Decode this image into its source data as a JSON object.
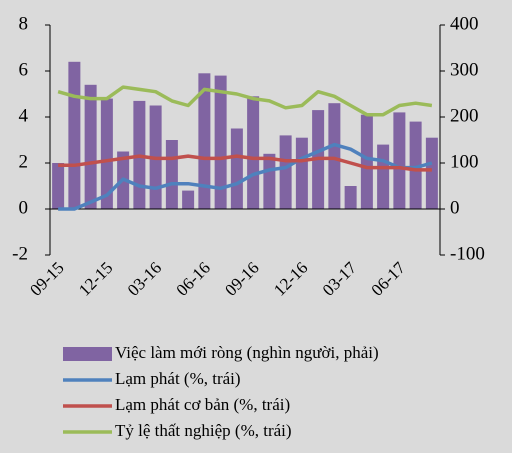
{
  "chart_data": {
    "type": "bar-line",
    "categories": [
      "09-15",
      null,
      null,
      "12-15",
      null,
      null,
      "03-16",
      null,
      null,
      "06-16",
      null,
      null,
      "09-16",
      null,
      null,
      "12-16",
      null,
      null,
      "03-17",
      null,
      null,
      "06-17",
      null,
      null
    ],
    "ylim": [
      -2,
      8
    ],
    "yticks": [
      -2,
      0,
      2,
      4,
      6,
      8
    ],
    "y2lim": [
      -100,
      400
    ],
    "y2ticks": [
      -100,
      0,
      100,
      200,
      300,
      400
    ],
    "series": [
      {
        "name": "Việc làm mới ròng (nghìn người, phải)",
        "type": "bar",
        "axis": "y2",
        "color": "#8064a2",
        "values": [
          100,
          320,
          270,
          240,
          125,
          235,
          225,
          150,
          40,
          295,
          290,
          175,
          245,
          120,
          160,
          155,
          215,
          230,
          50,
          205,
          140,
          210,
          190,
          155
        ]
      },
      {
        "name": "Lạm phát (%, trái)",
        "type": "line",
        "color": "#4f81bd",
        "values": [
          0.0,
          0.0,
          0.3,
          0.6,
          1.3,
          1.0,
          0.9,
          1.1,
          1.1,
          1.0,
          0.9,
          1.1,
          1.5,
          1.7,
          1.8,
          2.2,
          2.5,
          2.8,
          2.6,
          2.2,
          2.1,
          1.8,
          1.8,
          2.0
        ]
      },
      {
        "name": "Lạm phát cơ bản (%, trái)",
        "type": "line",
        "color": "#c0504d",
        "values": [
          1.9,
          1.9,
          2.0,
          2.1,
          2.2,
          2.3,
          2.2,
          2.2,
          2.3,
          2.2,
          2.2,
          2.3,
          2.2,
          2.2,
          2.1,
          2.1,
          2.2,
          2.2,
          2.0,
          1.8,
          1.8,
          1.8,
          1.7,
          1.7
        ]
      },
      {
        "name": "Tỷ lệ thất nghiệp (%, trái)",
        "type": "line",
        "color": "#9bbb59",
        "values": [
          5.1,
          4.9,
          4.8,
          4.8,
          5.3,
          5.2,
          5.1,
          4.7,
          4.5,
          5.2,
          5.1,
          5.0,
          4.8,
          4.7,
          4.4,
          4.5,
          5.1,
          4.9,
          4.5,
          4.1,
          4.1,
          4.5,
          4.6,
          4.5
        ]
      }
    ]
  }
}
